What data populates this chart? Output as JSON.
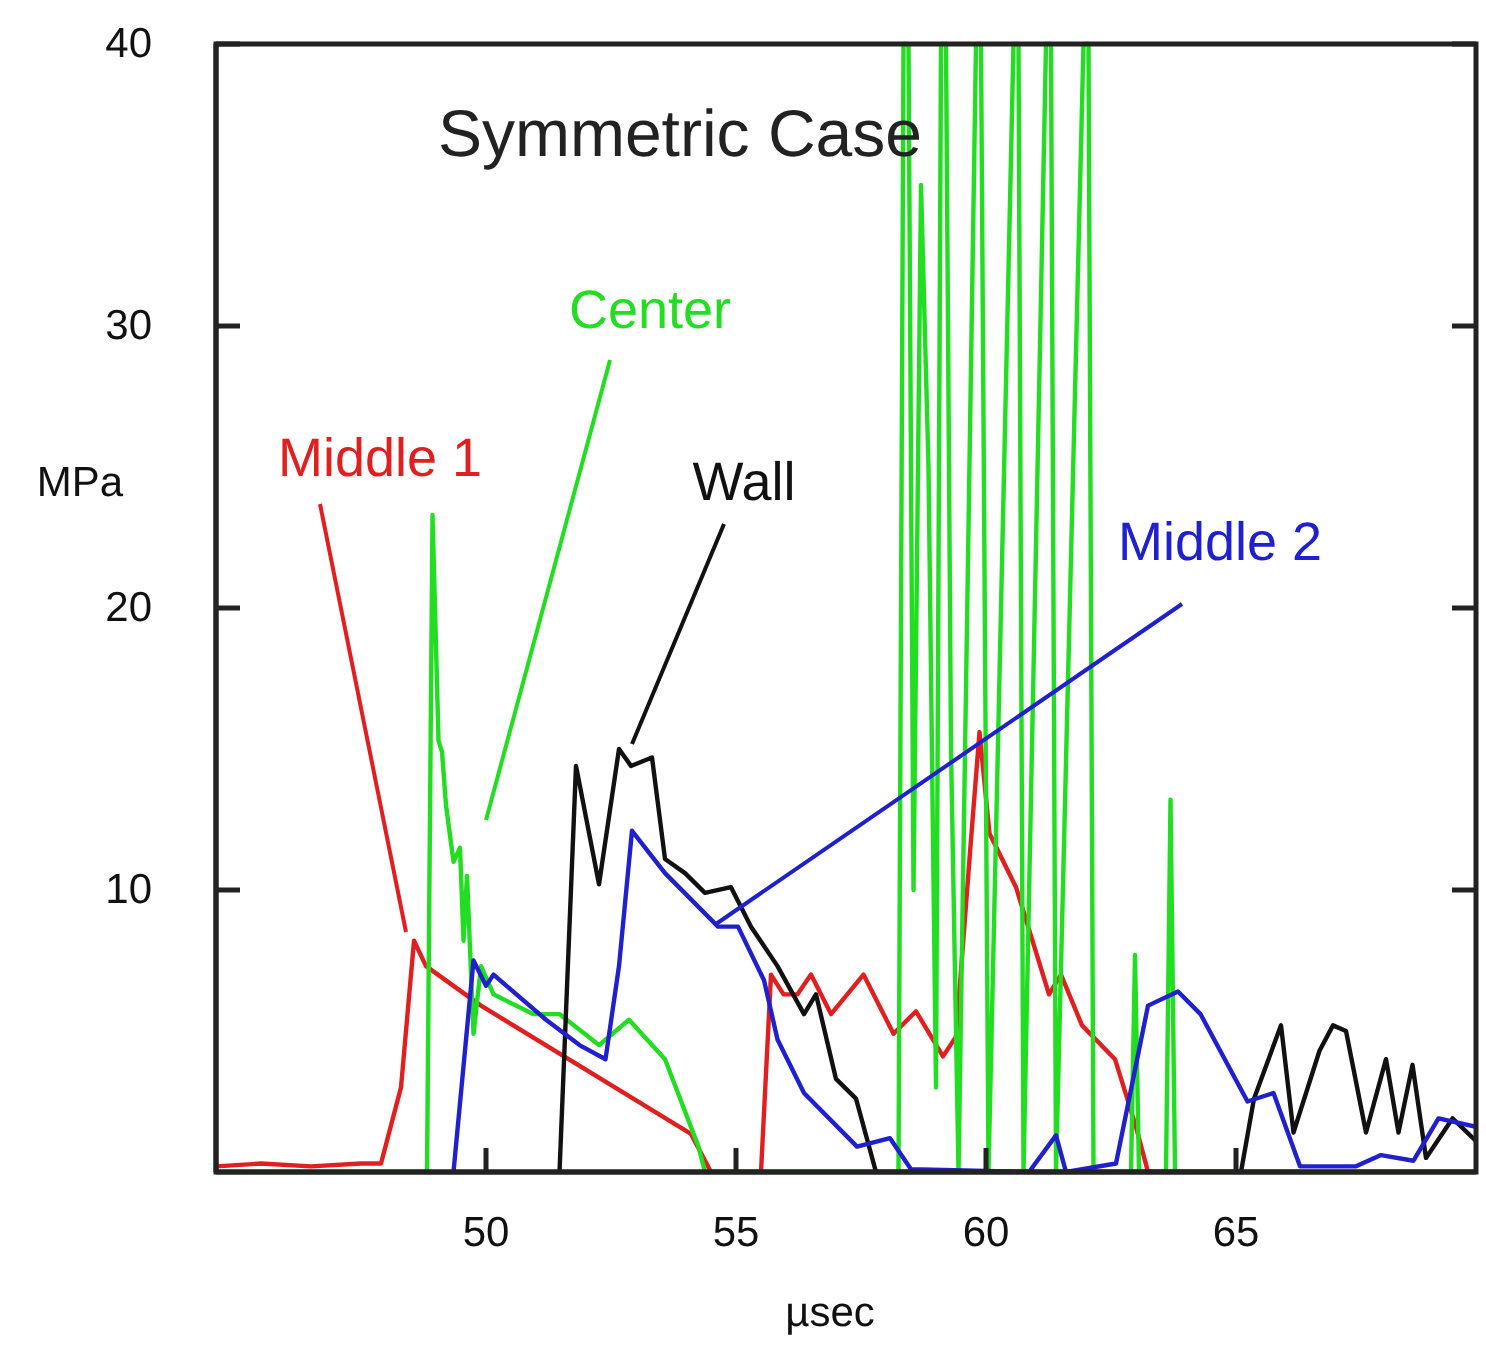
{
  "chart_data": {
    "type": "line",
    "title": "Symmetric Case",
    "xlabel": "µsec",
    "ylabel": "MPa",
    "xlim": [
      44.6,
      69.8
    ],
    "ylim": [
      0,
      40
    ],
    "xticks": [
      50,
      55,
      60,
      65
    ],
    "yticks": [
      10,
      20,
      30,
      40
    ],
    "grid": false,
    "legend": false,
    "marker": "none",
    "line_style": "solid",
    "series": [
      {
        "name": "Middle 1",
        "color": "#e02020",
        "x": [
          44.6,
          45.5,
          46.5,
          47.5,
          47.9,
          48.3,
          48.56,
          48.8,
          49.9,
          54.1,
          54.5,
          55.5,
          55.7,
          55.95,
          56.23,
          56.5,
          56.9,
          57.55,
          58.15,
          58.6,
          59.14,
          59.4,
          59.67,
          59.87,
          60.07,
          60.6,
          61.26,
          61.5,
          61.92,
          62.58,
          63.0,
          63.24,
          69.8
        ],
        "values": [
          0.2,
          0.3,
          0.2,
          0.3,
          0.3,
          3,
          8.2,
          7.3,
          5.9,
          1.35,
          0,
          0,
          7.0,
          6.3,
          6.3,
          7.0,
          5.6,
          7.0,
          4.9,
          5.7,
          4.1,
          4.8,
          11.1,
          15.6,
          12.0,
          10.1,
          6.3,
          7.0,
          5.2,
          4.0,
          1.6,
          0,
          0
        ]
      },
      {
        "name": "Center",
        "color": "#22dd22",
        "x": [
          44.6,
          48.82,
          48.93,
          49.05,
          49.12,
          49.2,
          49.35,
          49.48,
          49.55,
          49.62,
          49.75,
          49.9,
          50.15,
          50.94,
          51.47,
          52.26,
          52.86,
          53.58,
          54.25,
          54.38,
          58.25,
          58.35,
          58.45,
          58.55,
          58.7,
          58.85,
          59.0,
          59.1,
          59.2,
          59.3,
          59.45,
          59.8,
          59.9,
          60.05,
          60.55,
          60.65,
          60.75,
          61.2,
          61.3,
          61.4,
          61.95,
          62.05,
          62.15,
          62.9,
          62.98,
          63.06,
          63.6,
          63.69,
          63.78,
          69.8
        ],
        "values": [
          0,
          0,
          23.3,
          15.3,
          14.9,
          13.0,
          11.0,
          11.5,
          8.2,
          10.5,
          4.9,
          7.3,
          6.3,
          5.6,
          5.6,
          4.5,
          5.4,
          4.0,
          0.9,
          0,
          0,
          40,
          40,
          10,
          35,
          25,
          3,
          40,
          40,
          15,
          0,
          40,
          40,
          0,
          40,
          40,
          0,
          40,
          40,
          0,
          40,
          40,
          0,
          0,
          7.7,
          0,
          0,
          13.2,
          0,
          0
        ]
      },
      {
        "name": "Wall",
        "color": "#111111",
        "x": [
          51.47,
          51.8,
          52.26,
          52.66,
          52.9,
          53.32,
          53.58,
          53.98,
          54.38,
          54.9,
          55.3,
          55.83,
          56.36,
          56.6,
          57.0,
          57.4,
          57.8,
          65.1,
          65.36,
          65.9,
          66.15,
          66.67,
          66.94,
          67.2,
          67.6,
          68.0,
          68.25,
          68.53,
          68.8,
          69.33,
          69.8
        ],
        "values": [
          0,
          14.4,
          10.2,
          15.0,
          14.4,
          14.7,
          11.1,
          10.6,
          9.9,
          10.1,
          8.7,
          7.3,
          5.6,
          6.3,
          3.3,
          2.6,
          0,
          0,
          2.6,
          5.2,
          1.4,
          4.3,
          5.2,
          5.0,
          1.4,
          4.0,
          1.4,
          3.8,
          0.5,
          1.9,
          1.1
        ]
      },
      {
        "name": "Middle 2",
        "color": "#2020cc",
        "x": [
          49.35,
          49.75,
          50.0,
          50.15,
          51.2,
          51.87,
          52.39,
          52.66,
          52.92,
          53.58,
          54.64,
          55.04,
          55.56,
          55.83,
          56.36,
          57.42,
          58.08,
          58.5,
          60.86,
          61.4,
          61.6,
          62.6,
          63.24,
          63.84,
          64.29,
          65.23,
          65.75,
          66.28,
          67.4,
          67.9,
          68.55,
          69.05,
          69.8
        ],
        "values": [
          0,
          7.5,
          6.6,
          7.0,
          5.4,
          4.5,
          4.0,
          7.3,
          12.1,
          10.6,
          8.7,
          8.7,
          6.8,
          4.7,
          2.8,
          0.9,
          1.2,
          0.1,
          0,
          1.3,
          0,
          0.3,
          5.9,
          6.4,
          5.6,
          2.5,
          2.8,
          0.2,
          0.2,
          0.6,
          0.4,
          1.9,
          1.6
        ]
      }
    ]
  }
}
